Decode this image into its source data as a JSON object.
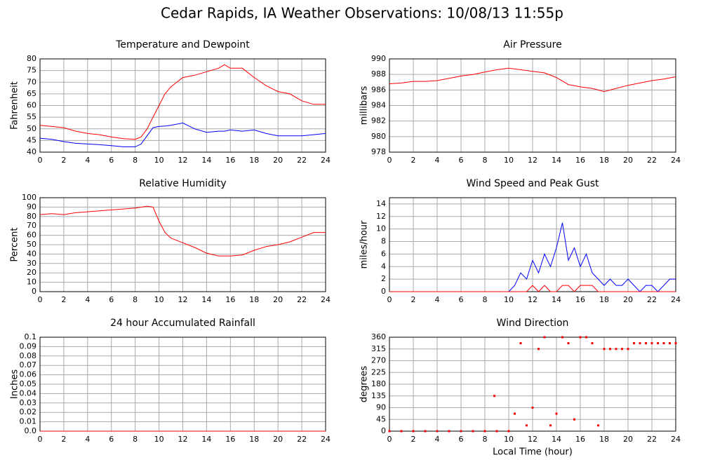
{
  "title": "Cedar Rapids, IA Weather Observations: 10/08/13 11:55p",
  "chart_data": [
    {
      "type": "line",
      "title": "Temperature and Dewpoint",
      "ylabel": "Fahrenheit",
      "grid": true,
      "xlim": [
        0,
        24
      ],
      "xticks": [
        0,
        2,
        4,
        6,
        8,
        10,
        12,
        14,
        16,
        18,
        20,
        22,
        24
      ],
      "ylim": [
        40,
        80
      ],
      "yticks": [
        40,
        45,
        50,
        55,
        60,
        65,
        70,
        75,
        80
      ],
      "x": [
        0,
        1,
        2,
        3,
        4,
        5,
        6,
        7,
        8,
        8.5,
        9,
        9.5,
        10,
        10.5,
        11,
        12,
        13,
        14,
        15,
        15.5,
        16,
        17,
        18,
        19,
        20,
        21,
        22,
        23,
        24
      ],
      "series": [
        {
          "color": "#ff0000",
          "values": [
            51.5,
            51,
            50.5,
            49,
            48,
            47.5,
            46.5,
            45.8,
            45.5,
            46.5,
            50,
            55,
            60,
            65,
            68,
            72,
            73,
            74.5,
            76,
            77.5,
            76,
            76,
            72,
            68.5,
            66,
            65,
            62,
            60.5,
            60.5
          ]
        },
        {
          "color": "#0000ff",
          "values": [
            46,
            45.5,
            44.5,
            43.8,
            43.5,
            43.2,
            42.8,
            42.3,
            42.3,
            43.5,
            47,
            50.5,
            51,
            51.2,
            51.5,
            52.5,
            50,
            48.5,
            49,
            49,
            49.5,
            49,
            49.5,
            48,
            47,
            47,
            47,
            47.5,
            48
          ]
        }
      ]
    },
    {
      "type": "line",
      "title": "Air Pressure",
      "ylabel": "millibars",
      "grid": true,
      "xlim": [
        0,
        24
      ],
      "xticks": [
        0,
        2,
        4,
        6,
        8,
        10,
        12,
        14,
        16,
        18,
        20,
        22,
        24
      ],
      "ylim": [
        978,
        990
      ],
      "yticks": [
        978,
        980,
        982,
        984,
        986,
        988,
        990
      ],
      "x": [
        0,
        1,
        2,
        3,
        4,
        5,
        6,
        7,
        8,
        9,
        10,
        11,
        12,
        13,
        14,
        15,
        16,
        17,
        18,
        19,
        20,
        21,
        22,
        23,
        24
      ],
      "series": [
        {
          "color": "#ff0000",
          "values": [
            986.8,
            986.9,
            987.1,
            987.1,
            987.2,
            987.5,
            987.8,
            988.0,
            988.3,
            988.6,
            988.8,
            988.6,
            988.4,
            988.2,
            987.6,
            986.7,
            986.4,
            986.2,
            985.8,
            986.2,
            986.6,
            986.9,
            987.2,
            987.4,
            987.7
          ]
        }
      ]
    },
    {
      "type": "line",
      "title": "Relative Humidity",
      "ylabel": "Percent",
      "grid": true,
      "xlim": [
        0,
        24
      ],
      "xticks": [
        0,
        2,
        4,
        6,
        8,
        10,
        12,
        14,
        16,
        18,
        20,
        22,
        24
      ],
      "ylim": [
        0,
        100
      ],
      "yticks": [
        0,
        10,
        20,
        30,
        40,
        50,
        60,
        70,
        80,
        90,
        100
      ],
      "x": [
        0,
        1,
        2,
        3,
        4,
        5,
        6,
        7,
        8,
        9,
        9.5,
        10,
        10.5,
        11,
        12,
        13,
        14,
        15,
        16,
        17,
        18,
        19,
        20,
        21,
        22,
        23,
        24
      ],
      "series": [
        {
          "color": "#ff0000",
          "values": [
            82,
            83,
            82,
            84,
            85,
            86,
            87,
            88,
            89,
            91,
            90,
            75,
            63,
            57,
            52,
            47,
            41,
            38,
            38,
            39,
            44,
            48,
            50,
            53,
            58,
            63,
            63
          ]
        }
      ]
    },
    {
      "type": "line",
      "title": "Wind Speed and Peak Gust",
      "ylabel": "miles/hour",
      "grid": true,
      "xlim": [
        0,
        24
      ],
      "xticks": [
        0,
        2,
        4,
        6,
        8,
        10,
        12,
        14,
        16,
        18,
        20,
        22,
        24
      ],
      "ylim": [
        0,
        15
      ],
      "yticks": [
        0,
        2,
        4,
        6,
        8,
        10,
        12,
        14
      ],
      "x": [
        0,
        0.5,
        1,
        1.5,
        2,
        2.5,
        3,
        3.5,
        4,
        4.5,
        5,
        5.5,
        6,
        6.5,
        7,
        7.5,
        8,
        8.5,
        9,
        9.5,
        10,
        10.5,
        11,
        11.5,
        12,
        12.5,
        13,
        13.5,
        14,
        14.5,
        15,
        15.5,
        16,
        16.5,
        17,
        17.5,
        18,
        18.5,
        19,
        19.5,
        20,
        20.5,
        21,
        21.5,
        22,
        22.5,
        23,
        23.5,
        24
      ],
      "series": [
        {
          "color": "#0000ff",
          "values": [
            0,
            0,
            0,
            0,
            0,
            0,
            0,
            0,
            0,
            0,
            0,
            0,
            0,
            0,
            0,
            0,
            0,
            0,
            0,
            0,
            0,
            1,
            3,
            2,
            5,
            3,
            6,
            4,
            7,
            11,
            5,
            7,
            4,
            6,
            3,
            2,
            1,
            2,
            1,
            1,
            2,
            1,
            0,
            1,
            1,
            0,
            1,
            2,
            2
          ]
        },
        {
          "color": "#ff0000",
          "values": [
            0,
            0,
            0,
            0,
            0,
            0,
            0,
            0,
            0,
            0,
            0,
            0,
            0,
            0,
            0,
            0,
            0,
            0,
            0,
            0,
            0,
            0,
            0,
            0,
            1,
            0,
            1,
            0,
            0,
            1,
            1,
            0,
            1,
            1,
            1,
            0,
            0,
            0,
            0,
            0,
            0,
            0,
            0,
            0,
            0,
            0,
            0,
            0,
            0
          ]
        }
      ]
    },
    {
      "type": "line",
      "title": "24 hour Accumulated Rainfall",
      "ylabel": "Inches",
      "grid": true,
      "xlim": [
        0,
        24
      ],
      "xticks": [
        0,
        2,
        4,
        6,
        8,
        10,
        12,
        14,
        16,
        18,
        20,
        22,
        24
      ],
      "ylim": [
        0,
        0.1
      ],
      "yticks": [
        {
          "value": 0,
          "label": "0.0"
        },
        0.01,
        0.02,
        0.03,
        0.04,
        0.05,
        0.06,
        0.07,
        0.08,
        0.09,
        0.1
      ],
      "x": [
        0,
        24
      ],
      "series": [
        {
          "color": "#ff0000",
          "values": [
            0,
            0
          ]
        }
      ]
    },
    {
      "type": "scatter",
      "title": "Wind Direction",
      "ylabel": "degrees",
      "xlabel": "Local Time (hour)",
      "grid": true,
      "xlim": [
        0,
        24
      ],
      "xticks": [
        0,
        2,
        4,
        6,
        8,
        10,
        12,
        14,
        16,
        18,
        20,
        22,
        24
      ],
      "ylim": [
        0,
        360
      ],
      "yticks": [
        0,
        45,
        90,
        135,
        180,
        225,
        270,
        315,
        360
      ],
      "x": [
        0,
        1,
        2,
        3,
        4,
        5,
        6,
        7,
        8,
        8.8,
        9,
        10,
        10.5,
        11,
        11.5,
        12,
        12.5,
        13,
        13.5,
        14,
        14.5,
        15,
        15.5,
        16,
        16.5,
        17,
        17.5,
        18,
        18.5,
        19,
        19.5,
        20,
        20.5,
        21,
        21.5,
        22,
        22.5,
        23,
        23.5,
        24
      ],
      "series": [
        {
          "color": "#ff0000",
          "values": [
            0,
            0,
            0,
            0,
            0,
            0,
            0,
            0,
            0,
            135,
            0,
            0,
            67,
            337,
            22,
            90,
            315,
            360,
            22,
            67,
            360,
            337,
            45,
            360,
            360,
            337,
            22,
            315,
            315,
            315,
            315,
            315,
            337,
            337,
            337,
            337,
            337,
            337,
            337,
            337
          ]
        }
      ]
    }
  ]
}
